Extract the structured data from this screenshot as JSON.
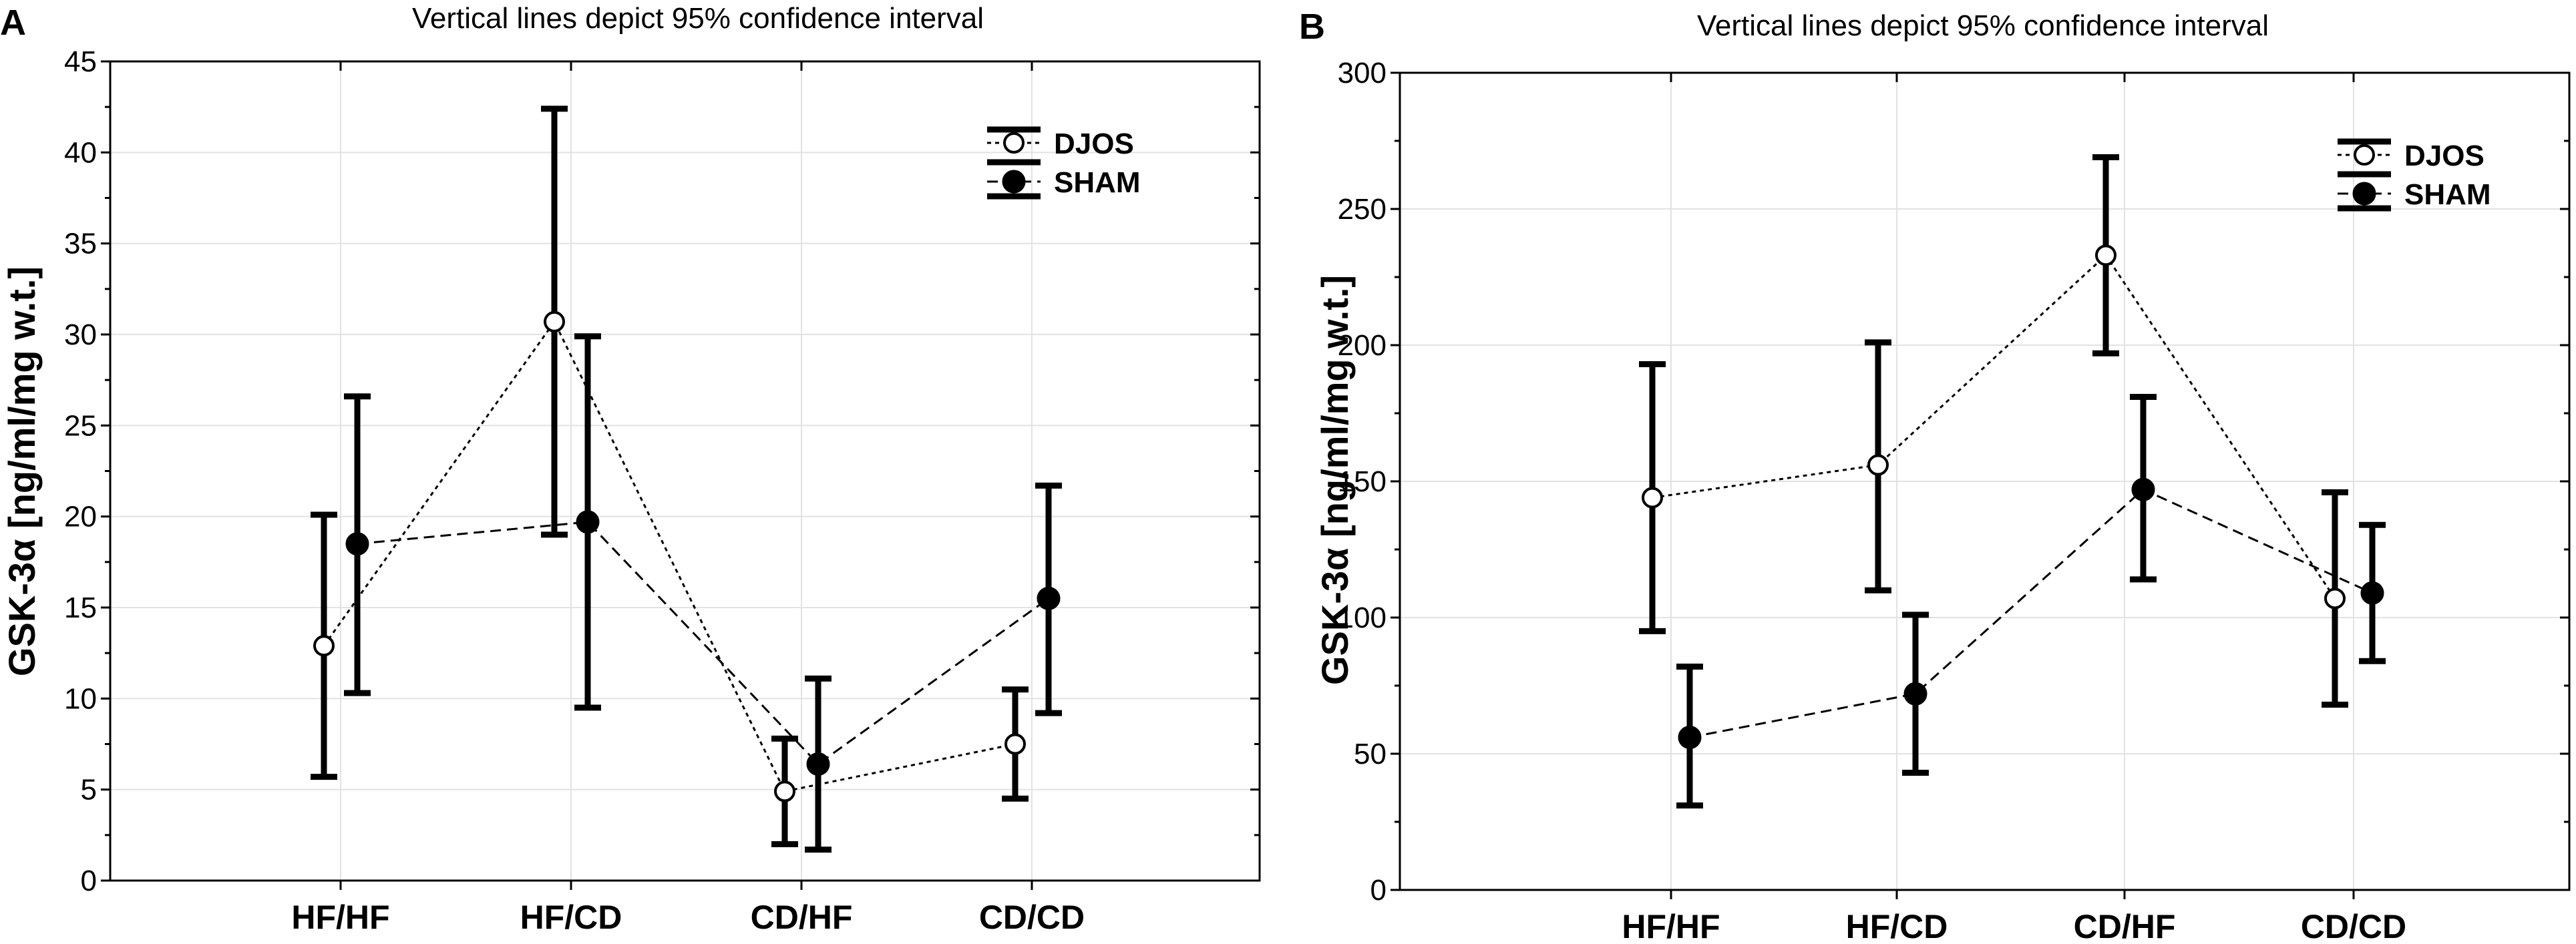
{
  "chart_data": [
    {
      "panel": "A",
      "type": "scatter",
      "title": "Vertical lines depict 95% confidence interval",
      "ylabel": "GSK-3α [ng/ml/mg w.t.]",
      "xlabel": "",
      "categories": [
        "HF/HF",
        "HF/CD",
        "CD/HF",
        "CD/CD"
      ],
      "ylim": [
        0,
        45
      ],
      "yticks": [
        0,
        5,
        10,
        15,
        20,
        25,
        30,
        35,
        40,
        45
      ],
      "grid": true,
      "legend_position": "top-right",
      "series": [
        {
          "name": "DJOS",
          "marker": "open-circle",
          "values": [
            12.9,
            30.7,
            4.9,
            7.5
          ],
          "ci_low": [
            5.7,
            19.0,
            2.0,
            4.5
          ],
          "ci_high": [
            20.1,
            42.4,
            7.8,
            10.5
          ]
        },
        {
          "name": "SHAM",
          "marker": "filled-circle",
          "values": [
            18.5,
            19.7,
            6.4,
            15.5
          ],
          "ci_low": [
            10.3,
            9.5,
            1.7,
            9.2
          ],
          "ci_high": [
            26.6,
            29.9,
            11.1,
            21.7
          ]
        }
      ]
    },
    {
      "panel": "B",
      "type": "scatter",
      "title": "Vertical lines depict 95% confidence interval",
      "ylabel": "GSK-3α [ng/ml/mg w.t.]",
      "xlabel": "",
      "categories": [
        "HF/HF",
        "HF/CD",
        "CD/HF",
        "CD/CD"
      ],
      "ylim": [
        0,
        300
      ],
      "yticks": [
        0,
        50,
        100,
        150,
        200,
        250,
        300
      ],
      "grid": true,
      "legend_position": "top-right",
      "series": [
        {
          "name": "DJOS",
          "marker": "open-circle",
          "values": [
            144,
            156,
            233,
            107
          ],
          "ci_low": [
            95,
            110,
            197,
            68
          ],
          "ci_high": [
            193,
            201,
            269,
            146
          ]
        },
        {
          "name": "SHAM",
          "marker": "filled-circle",
          "values": [
            56,
            72,
            147,
            109
          ],
          "ci_low": [
            31,
            43,
            114,
            84
          ],
          "ci_high": [
            82,
            101,
            181,
            134
          ]
        }
      ]
    }
  ]
}
